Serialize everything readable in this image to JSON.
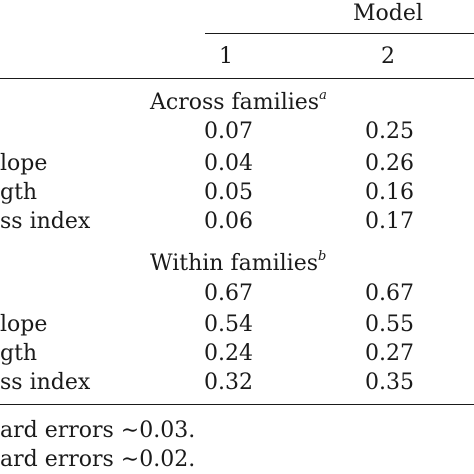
{
  "table": {
    "column_group_label": "Model",
    "columns": [
      "1",
      "2"
    ],
    "sections": [
      {
        "heading": "Across families",
        "heading_note": "a",
        "rows": [
          {
            "label": "",
            "values": [
              "0.07",
              "0.25"
            ]
          },
          {
            "label": "lope",
            "values": [
              "0.04",
              "0.26"
            ]
          },
          {
            "label": "gth",
            "values": [
              "0.05",
              "0.16"
            ]
          },
          {
            "label": "ss index",
            "values": [
              "0.06",
              "0.17"
            ]
          }
        ]
      },
      {
        "heading": "Within families",
        "heading_note": "b",
        "rows": [
          {
            "label": "",
            "values": [
              "0.67",
              "0.67"
            ]
          },
          {
            "label": "lope",
            "values": [
              "0.54",
              "0.55"
            ]
          },
          {
            "label": "gth",
            "values": [
              "0.24",
              "0.27"
            ]
          },
          {
            "label": "ss index",
            "values": [
              "0.32",
              "0.35"
            ]
          }
        ]
      }
    ]
  },
  "footnotes": [
    "ard errors ∼0.03.",
    "ard errors ∼0.02."
  ]
}
